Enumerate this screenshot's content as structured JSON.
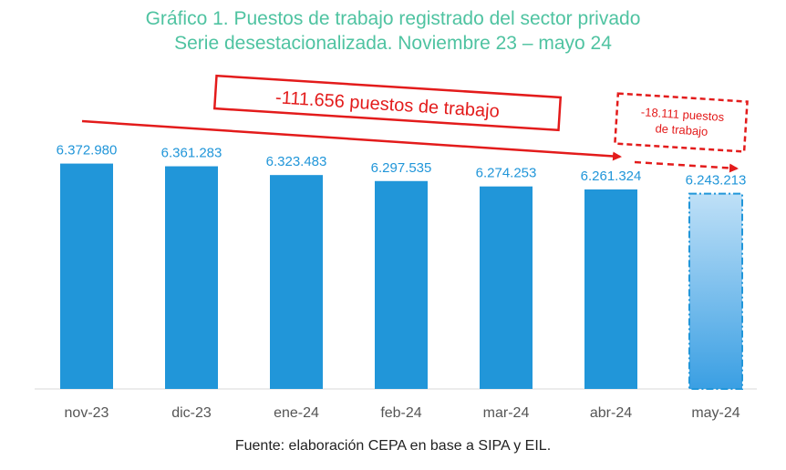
{
  "title": "Gráfico 1. Puestos de trabajo registrado del sector privado",
  "subtitle": "Serie desestacionalizada. Noviembre 23 – mayo 24",
  "source": "Fuente: elaboración CEPA en base a SIPA y EIL.",
  "colors": {
    "title": "#4fc3a1",
    "bar": "#2196d9",
    "value_label": "#2196d9",
    "annotation": "#e31b1b",
    "axis_text": "#555555"
  },
  "chart_data": {
    "type": "bar",
    "categories": [
      "nov-23",
      "dic-23",
      "ene-24",
      "feb-24",
      "mar-24",
      "abr-24",
      "may-24"
    ],
    "values": [
      6372980,
      6361283,
      6323483,
      6297535,
      6274253,
      6261324,
      6243213
    ],
    "value_labels": [
      "6.372.980",
      "6.361.283",
      "6.323.483",
      "6.297.535",
      "6.274.253",
      "6.261.324",
      "6.243.213"
    ],
    "highlighted_category": "may-24",
    "ylim": [
      5400000,
      6450000
    ],
    "grid": false,
    "annotations": {
      "total_change": "-111.656 puestos de trabajo",
      "last_month_change_line1": "-18.111 puestos",
      "last_month_change_line2": "de trabajo"
    }
  }
}
